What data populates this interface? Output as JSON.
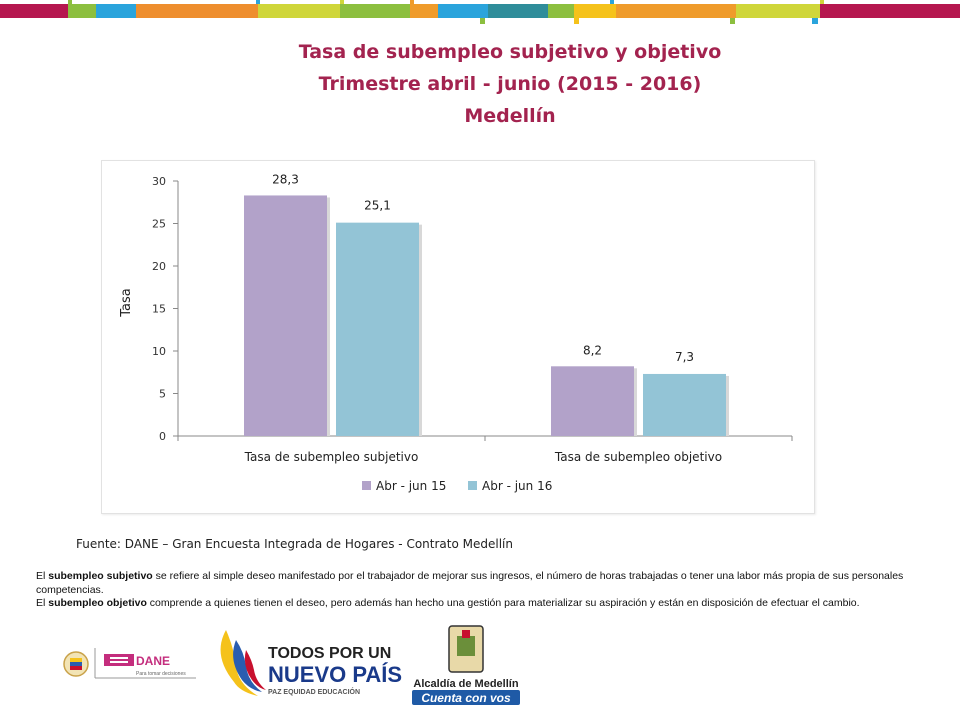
{
  "title": {
    "line1": "Tasa de subempleo subjetivo y objetivo",
    "line2": "Trimestre abril - junio (2015 - 2016)",
    "line3": "Medellín"
  },
  "colors": {
    "title": "#a3234f",
    "series1": "#b2a2c9",
    "series2": "#93c4d6",
    "topbar": [
      "#b5174f",
      "#8cbf3f",
      "#2aa4dc",
      "#ee8e2e",
      "#f5c21b",
      "#8cbf3f",
      "#2f8d9a",
      "#ef9b2b",
      "#cfd63a",
      "#b5174f"
    ]
  },
  "chart_data": {
    "type": "bar",
    "categories": [
      "Tasa de subempleo subjetivo",
      "Tasa de subempleo objetivo"
    ],
    "series": [
      {
        "name": "Abr - jun 15",
        "values": [
          28.3,
          8.2
        ],
        "labels": [
          "28,3",
          "8,2"
        ]
      },
      {
        "name": "Abr - jun 16",
        "values": [
          25.1,
          7.3
        ],
        "labels": [
          "25,1",
          "7,3"
        ]
      }
    ],
    "ylabel": "Tasa",
    "xlabel": "",
    "ylim": [
      0,
      30
    ],
    "yticks": [
      0,
      5,
      10,
      15,
      20,
      25,
      30
    ],
    "legend_position": "bottom",
    "grid": false
  },
  "source": "Fuente: DANE – Gran Encuesta Integrada de Hogares - Contrato Medellín",
  "definitions": {
    "p1_pre": "El ",
    "p1_term": "subempleo subjetivo",
    "p1_text": " se refiere al simple deseo manifestado por el trabajador de mejorar sus ingresos, el número de horas trabajadas o tener una labor más propia de sus personales competencias.",
    "p2_pre": "El ",
    "p2_term": "subempleo objetivo",
    "p2_text": " comprende a quienes tienen el deseo, pero además han hecho una gestión para materializar su aspiración y están en disposición de efectuar el cambio."
  },
  "logos": {
    "dane": "DANE",
    "dane_tagline": "Para tomar decisiones",
    "todos_line1": "TODOS POR UN",
    "todos_line2": "NUEVO PAÍS",
    "todos_line3": "PAZ  EQUIDAD  EDUCACIÓN",
    "alcaldia": "Alcaldía de Medellín",
    "cuenta": "Cuenta con vos"
  }
}
